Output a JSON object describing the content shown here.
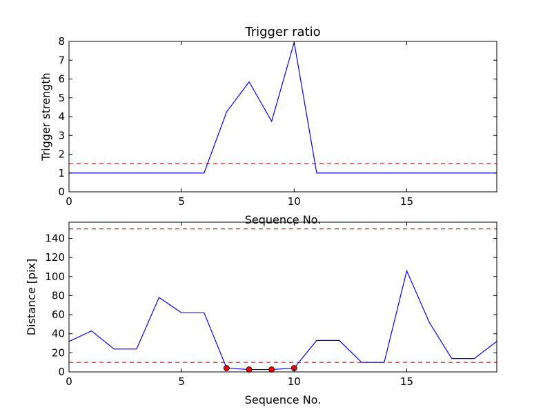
{
  "chart_data": [
    {
      "type": "line",
      "title": "Trigger ratio",
      "xlabel": "Sequence No.",
      "ylabel": "Trigger strength",
      "xlim": [
        0,
        19
      ],
      "ylim": [
        0,
        8
      ],
      "xticks": [
        0,
        5,
        10,
        15
      ],
      "yticks": [
        0,
        1,
        2,
        3,
        4,
        5,
        6,
        7,
        8
      ],
      "grid": false,
      "series": [
        {
          "color": "#0000ff",
          "x": [
            0,
            1,
            2,
            3,
            4,
            5,
            6,
            7,
            8,
            9,
            10,
            11,
            12,
            13,
            14,
            15,
            16,
            17,
            18,
            19
          ],
          "values": [
            1,
            1,
            1,
            1,
            1,
            1,
            1,
            4.25,
            5.85,
            3.75,
            7.95,
            1,
            1,
            1,
            1,
            1,
            1,
            1,
            1,
            1
          ]
        }
      ],
      "hlines": [
        {
          "y": 1.5,
          "color": "#ff0000",
          "style": "dashed"
        }
      ]
    },
    {
      "type": "line",
      "title": "",
      "xlabel": "Sequence No.",
      "ylabel": "Distance [pix]",
      "xlim": [
        0,
        19
      ],
      "ylim": [
        0,
        157
      ],
      "xticks": [
        0,
        5,
        10,
        15
      ],
      "yticks": [
        0,
        20,
        40,
        60,
        80,
        100,
        120,
        140
      ],
      "grid": false,
      "series": [
        {
          "color": "#0000ff",
          "x": [
            0,
            1,
            2,
            3,
            4,
            5,
            6,
            7,
            8,
            9,
            10,
            11,
            12,
            13,
            14,
            15,
            16,
            17,
            18,
            19
          ],
          "values": [
            32,
            43,
            24,
            24,
            78,
            62,
            62,
            4,
            2.5,
            2.5,
            4,
            33,
            33,
            10,
            10,
            106,
            52,
            14,
            14,
            32
          ]
        }
      ],
      "markers": {
        "color": "#ff0000",
        "x": [
          7,
          8,
          9,
          10
        ],
        "values": [
          4,
          2.5,
          2.5,
          4
        ]
      },
      "hlines": [
        {
          "y": 150,
          "color": "#ff0000",
          "style": "dashed"
        },
        {
          "y": 10,
          "color": "#ff0000",
          "style": "dashed"
        }
      ]
    }
  ]
}
